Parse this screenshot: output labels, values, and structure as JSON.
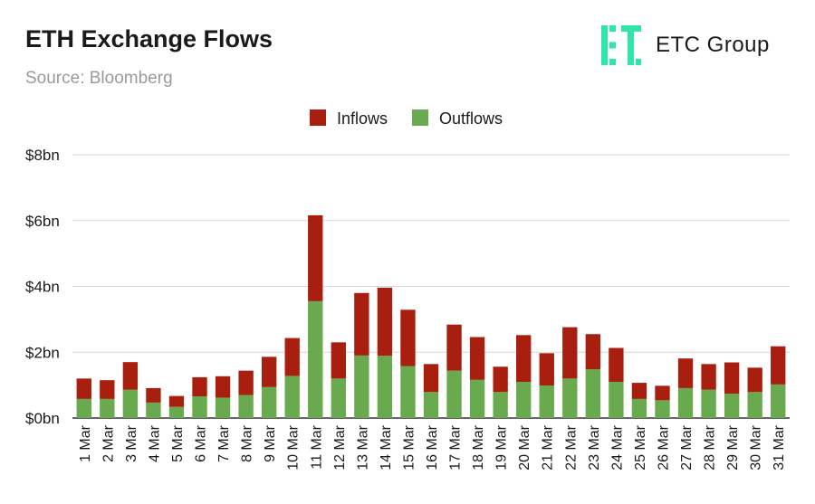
{
  "header": {
    "title": "ETH Exchange Flows",
    "subtitle": "Source: Bloomberg"
  },
  "brand": {
    "name": "ETC Group",
    "logo_icon": "etc-group-logo-icon",
    "logo_color": "#2ee6a6"
  },
  "chart_data": {
    "type": "bar",
    "stacked": true,
    "title": "ETH Exchange Flows",
    "xlabel": "",
    "ylabel": "",
    "ylim": [
      0,
      8
    ],
    "y_ticks": [
      0,
      2,
      4,
      6,
      8
    ],
    "y_tick_labels": [
      "$0bn",
      "$2bn",
      "$4bn",
      "$6bn",
      "$8bn"
    ],
    "grid": true,
    "legend_position": "top-center",
    "categories": [
      "1 Mar",
      "2 Mar",
      "3 Mar",
      "4 Mar",
      "5 Mar",
      "6 Mar",
      "7 Mar",
      "8 Mar",
      "9 Mar",
      "10 Mar",
      "11 Mar",
      "12 Mar",
      "13 Mar",
      "14 Mar",
      "15 Mar",
      "16 Mar",
      "17 Mar",
      "18 Mar",
      "19 Mar",
      "20 Mar",
      "21 Mar",
      "22 Mar",
      "23 Mar",
      "24 Mar",
      "25 Mar",
      "26 Mar",
      "27 Mar",
      "28 Mar",
      "29 Mar",
      "30 Mar",
      "31 Mar"
    ],
    "series": [
      {
        "name": "Outflows",
        "color": "#6aaa4f",
        "values": [
          0.58,
          0.58,
          0.86,
          0.47,
          0.34,
          0.66,
          0.62,
          0.7,
          0.94,
          1.28,
          3.55,
          1.2,
          1.9,
          1.89,
          1.58,
          0.79,
          1.44,
          1.16,
          0.79,
          1.1,
          0.99,
          1.2,
          1.48,
          1.1,
          0.58,
          0.54,
          0.91,
          0.86,
          0.74,
          0.79,
          1.02
        ]
      },
      {
        "name": "Inflows",
        "color": "#a91f0f",
        "values": [
          0.62,
          0.57,
          0.84,
          0.44,
          0.33,
          0.58,
          0.65,
          0.74,
          0.92,
          1.15,
          2.61,
          1.1,
          1.9,
          2.07,
          1.71,
          0.85,
          1.4,
          1.3,
          0.77,
          1.42,
          0.98,
          1.56,
          1.07,
          1.03,
          0.49,
          0.44,
          0.9,
          0.78,
          0.95,
          0.74,
          1.16
        ]
      }
    ]
  },
  "legend": {
    "items": [
      {
        "label": "Inflows",
        "color": "#a91f0f"
      },
      {
        "label": "Outflows",
        "color": "#6aaa4f"
      }
    ]
  }
}
